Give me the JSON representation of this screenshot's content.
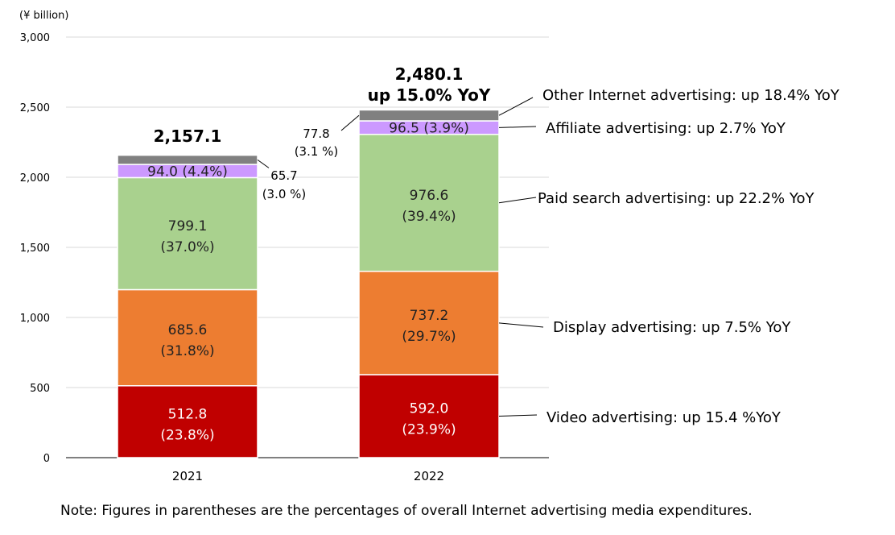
{
  "chart_data": {
    "type": "bar",
    "stacked": true,
    "unit_label": "(¥ billion)",
    "ylim": [
      0,
      3000
    ],
    "yticks": [
      "0",
      "500",
      "1,000",
      "1,500",
      "2,000",
      "2,500",
      "3,000"
    ],
    "ytick_values": [
      0,
      500,
      1000,
      1500,
      2000,
      2500,
      3000
    ],
    "grid": true,
    "categories": [
      "2021",
      "2022"
    ],
    "series": [
      {
        "name": "Video advertising",
        "color": "#c00000",
        "values": [
          512.8,
          592.0
        ],
        "labels": [
          "512.8",
          "592.0"
        ],
        "shares": [
          "(23.8%)",
          "(23.9%)"
        ]
      },
      {
        "name": "Display advertising",
        "color": "#ed7d31",
        "values": [
          685.6,
          737.2
        ],
        "labels": [
          "685.6",
          "737.2"
        ],
        "shares": [
          "(31.8%)",
          "(29.7%)"
        ]
      },
      {
        "name": "Paid search advertising",
        "color": "#a9d18e",
        "values": [
          799.1,
          976.6
        ],
        "labels": [
          "799.1",
          "976.6"
        ],
        "shares": [
          "(37.0%)",
          "(39.4%)"
        ]
      },
      {
        "name": "Affiliate advertising",
        "color": "#cc99ff",
        "values": [
          94.0,
          96.5
        ],
        "labels": [
          "94.0 (4.4%)",
          "96.5 (3.9%)"
        ]
      },
      {
        "name": "Other Internet advertising",
        "color": "#808080",
        "values": [
          65.7,
          77.8
        ],
        "labels": [
          "65.7",
          "77.8"
        ],
        "shares": [
          "(3.0 %)",
          "(3.1 %)"
        ]
      }
    ],
    "totals": [
      "2,157.1",
      "2,480.1"
    ],
    "total_growth_2022": "up 15.0% YoY",
    "annotations": [
      "Other Internet advertising: up 18.4% YoY",
      "Affiliate advertising: up 2.7% YoY",
      "Paid search advertising: up 22.2% YoY",
      "Display advertising: up 7.5% YoY",
      "Video advertising: up 15.4 %YoY"
    ],
    "note": "Note: Figures in parentheses are the percentages of overall Internet advertising media expenditures."
  }
}
